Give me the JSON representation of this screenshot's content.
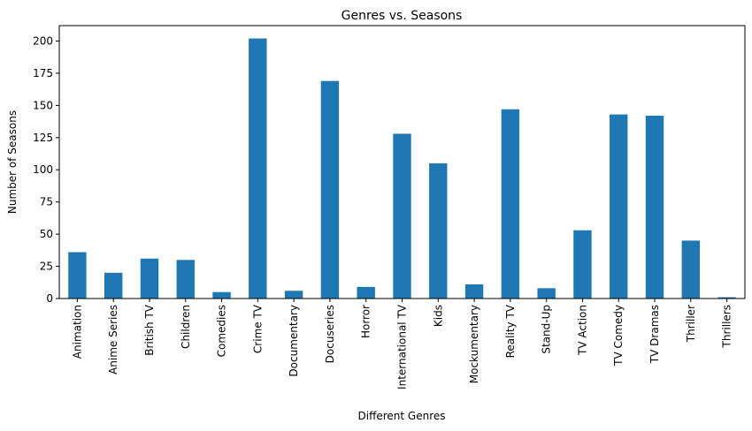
{
  "chart_data": {
    "type": "bar",
    "title": "Genres vs. Seasons",
    "xlabel": "Different Genres",
    "ylabel": "Number of Seasons",
    "categories": [
      "Animation",
      "Anime Series",
      "British TV",
      "Children",
      "Comedies",
      "Crime TV",
      "Documentary",
      "Docuseries",
      "Horror",
      "International TV",
      "Kids",
      "Mockumentary",
      "Reality TV",
      "Stand-Up",
      "TV Action",
      "TV Comedy",
      "TV Dramas",
      "Thriller",
      "Thrillers"
    ],
    "values": [
      36,
      20,
      31,
      30,
      5,
      202,
      6,
      169,
      9,
      128,
      105,
      11,
      147,
      8,
      53,
      143,
      142,
      45,
      1
    ],
    "ylim": [
      0,
      212
    ],
    "yticks": [
      0,
      25,
      50,
      75,
      100,
      125,
      150,
      175,
      200
    ],
    "bar_color": "#1f77b4",
    "grid": false,
    "legend": "none"
  }
}
